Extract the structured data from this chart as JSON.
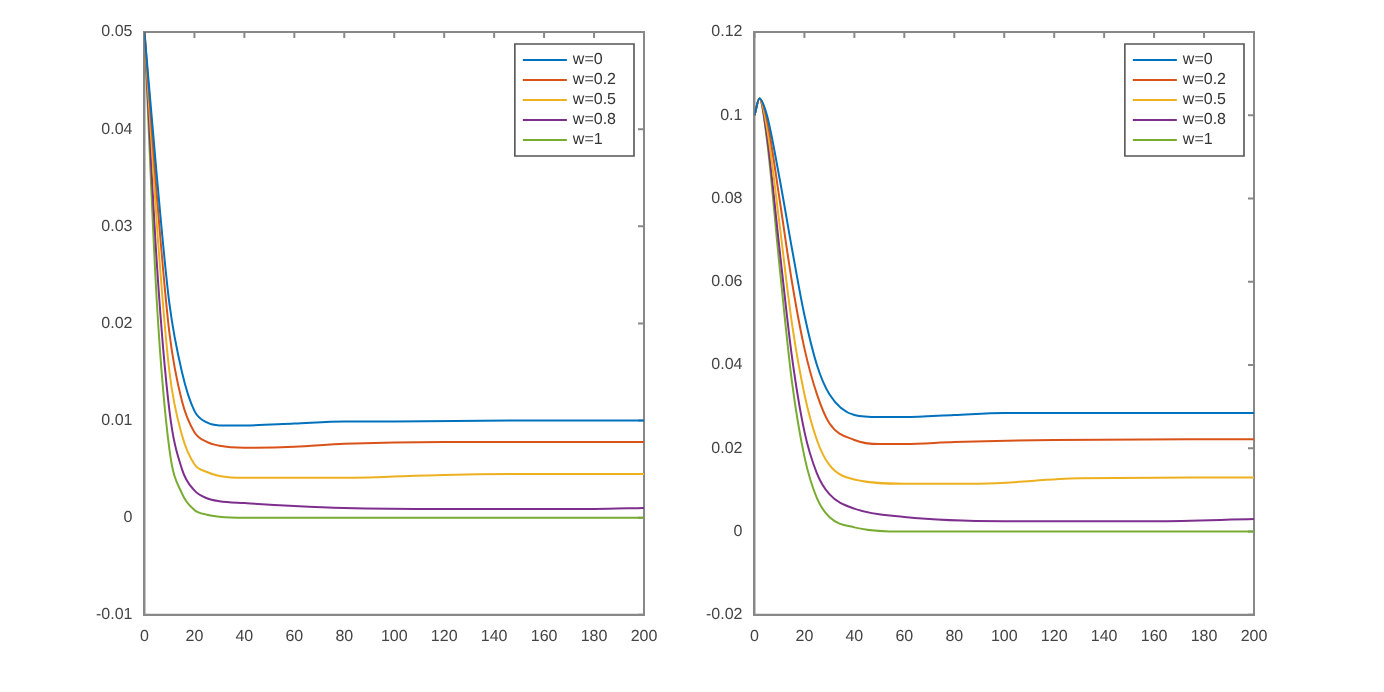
{
  "chart_data": [
    {
      "type": "line",
      "xlim": [
        0,
        200
      ],
      "xticks": [
        0,
        20,
        40,
        60,
        80,
        100,
        120,
        140,
        160,
        180,
        200
      ],
      "ylim": [
        -0.01,
        0.05
      ],
      "yticks": [
        -0.01,
        0,
        0.01,
        0.02,
        0.03,
        0.04,
        0.05
      ],
      "grid": false,
      "legend": "top right",
      "marker": "none",
      "line_style": "solid",
      "series": [
        {
          "name": "w=0",
          "color": "#0072bd",
          "x": [
            0,
            5,
            10,
            15,
            20,
            25,
            30,
            40,
            60,
            80,
            100,
            150,
            200
          ],
          "values": [
            0.05,
            0.035,
            0.022,
            0.015,
            0.011,
            0.0098,
            0.0095,
            0.0095,
            0.0097,
            0.0099,
            0.0099,
            0.01,
            0.01
          ]
        },
        {
          "name": "w=0.2",
          "color": "#d95319",
          "x": [
            0,
            5,
            10,
            15,
            20,
            25,
            30,
            40,
            60,
            80,
            120,
            200
          ],
          "values": [
            0.05,
            0.033,
            0.019,
            0.012,
            0.0088,
            0.0078,
            0.0074,
            0.0072,
            0.0073,
            0.0076,
            0.0078,
            0.0078
          ]
        },
        {
          "name": "w=0.5",
          "color": "#edb120",
          "x": [
            0,
            5,
            10,
            15,
            20,
            25,
            30,
            40,
            60,
            80,
            120,
            160,
            200
          ],
          "values": [
            0.05,
            0.03,
            0.015,
            0.0085,
            0.0055,
            0.0047,
            0.0043,
            0.0041,
            0.0041,
            0.0041,
            0.0044,
            0.0045,
            0.0045
          ]
        },
        {
          "name": "w=0.8",
          "color": "#7e2f8e",
          "x": [
            0,
            5,
            10,
            15,
            20,
            25,
            30,
            40,
            60,
            80,
            120,
            180,
            200
          ],
          "values": [
            0.05,
            0.026,
            0.011,
            0.005,
            0.0028,
            0.002,
            0.0017,
            0.0015,
            0.0012,
            0.001,
            0.0009,
            0.0009,
            0.001
          ]
        },
        {
          "name": "w=1",
          "color": "#77ac30",
          "x": [
            0,
            5,
            10,
            15,
            20,
            25,
            30,
            40,
            200
          ],
          "values": [
            0.05,
            0.022,
            0.007,
            0.0025,
            0.0008,
            0.0003,
            0.0001,
            0,
            0
          ]
        }
      ]
    },
    {
      "type": "line",
      "xlim": [
        0,
        200
      ],
      "xticks": [
        0,
        20,
        40,
        60,
        80,
        100,
        120,
        140,
        160,
        180,
        200
      ],
      "ylim": [
        -0.02,
        0.12
      ],
      "yticks": [
        -0.02,
        0,
        0.02,
        0.04,
        0.06,
        0.08,
        0.1,
        0.12
      ],
      "grid": false,
      "legend": "top right",
      "marker": "none",
      "line_style": "solid",
      "series": [
        {
          "name": "w=0",
          "color": "#0072bd",
          "x": [
            0,
            2,
            5,
            10,
            15,
            20,
            25,
            30,
            40,
            50,
            60,
            80,
            100,
            200
          ],
          "values": [
            0.1,
            0.104,
            0.1,
            0.085,
            0.068,
            0.052,
            0.04,
            0.033,
            0.028,
            0.0275,
            0.0275,
            0.028,
            0.0285,
            0.0285
          ]
        },
        {
          "name": "w=0.2",
          "color": "#d95319",
          "x": [
            0,
            2,
            5,
            10,
            15,
            20,
            25,
            30,
            40,
            50,
            60,
            80,
            120,
            200
          ],
          "values": [
            0.1,
            0.104,
            0.099,
            0.08,
            0.06,
            0.044,
            0.033,
            0.026,
            0.022,
            0.021,
            0.021,
            0.0215,
            0.022,
            0.0222
          ]
        },
        {
          "name": "w=0.5",
          "color": "#edb120",
          "x": [
            0,
            2,
            5,
            10,
            15,
            20,
            25,
            30,
            40,
            60,
            90,
            130,
            200
          ],
          "values": [
            0.1,
            0.104,
            0.097,
            0.074,
            0.05,
            0.033,
            0.022,
            0.016,
            0.0125,
            0.0115,
            0.0115,
            0.0128,
            0.013
          ]
        },
        {
          "name": "w=0.8",
          "color": "#7e2f8e",
          "x": [
            0,
            2,
            5,
            10,
            15,
            20,
            25,
            30,
            40,
            60,
            100,
            160,
            200
          ],
          "values": [
            0.1,
            0.104,
            0.095,
            0.068,
            0.042,
            0.024,
            0.014,
            0.009,
            0.0055,
            0.0035,
            0.0025,
            0.0025,
            0.003
          ]
        },
        {
          "name": "w=1",
          "color": "#77ac30",
          "x": [
            0,
            2,
            5,
            10,
            15,
            20,
            25,
            30,
            40,
            60,
            200
          ],
          "values": [
            0.1,
            0.104,
            0.094,
            0.064,
            0.036,
            0.018,
            0.008,
            0.0035,
            0.001,
            0,
            0
          ]
        }
      ]
    }
  ]
}
